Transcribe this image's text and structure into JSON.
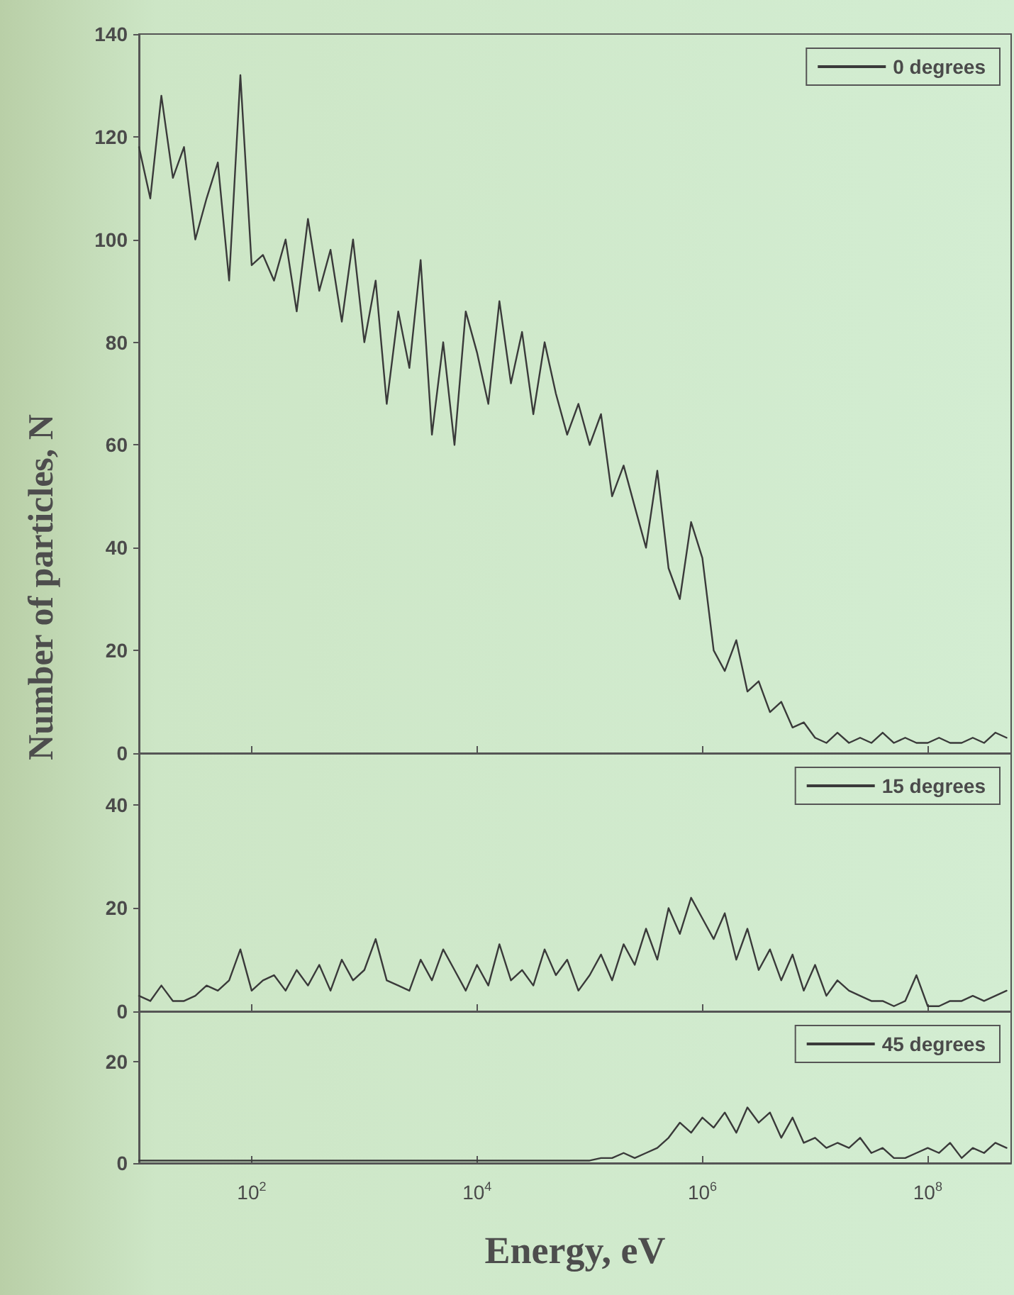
{
  "chart_data": [
    {
      "type": "line",
      "ylabel": "Number of particles, N",
      "log": "x",
      "legend": "top right",
      "tick_labels": "y",
      "x": [
        10,
        12.6,
        15.8,
        20,
        25.1,
        31.6,
        39.8,
        50.1,
        63.1,
        79.4,
        100,
        126,
        158,
        200,
        251,
        316,
        398,
        501,
        631,
        794,
        1000,
        1260,
        1580,
        2000,
        2510,
        3160,
        3980,
        5010,
        6310,
        7940,
        10000.0,
        12600.0,
        15800.0,
        20000.0,
        25100.0,
        31600.0,
        39800.0,
        50100.0,
        63100.0,
        79400.0,
        100000.0,
        126000.0,
        158000.0,
        200000.0,
        251000.0,
        316000.0,
        398000.0,
        501000.0,
        631000.0,
        794000.0,
        1000000.0,
        1260000.0,
        1580000.0,
        2000000.0,
        2510000.0,
        3160000.0,
        3980000.0,
        5010000.0,
        6310000.0,
        7940000.0,
        10000000.0,
        12600000.0,
        15800000.0,
        20000000.0,
        25100000.0,
        31600000.0,
        39800000.0,
        50100000.0,
        63100000.0,
        79400000.0,
        100000000.0,
        126000000.0,
        158000000.0,
        200000000.0,
        251000000.0,
        316000000.0,
        398000000.0,
        501000000.0
      ],
      "xlim": [
        10,
        550000000.0
      ],
      "xticks": [
        {
          "value": 100,
          "label": null
        },
        {
          "value": 10000,
          "label": null
        },
        {
          "value": 1000000,
          "label": null
        },
        {
          "value": 100000000,
          "label": null
        }
      ],
      "ylim": [
        0,
        140
      ],
      "yticks": [
        0,
        20,
        40,
        60,
        80,
        100,
        120,
        140
      ],
      "series": [
        {
          "name": "0 degrees",
          "color": "#3a3a3a",
          "values": [
            118,
            108,
            128,
            112,
            118,
            100,
            108,
            115,
            92,
            132,
            95,
            97,
            92,
            100,
            86,
            104,
            90,
            98,
            84,
            100,
            80,
            92,
            68,
            86,
            75,
            96,
            62,
            80,
            60,
            86,
            78,
            68,
            88,
            72,
            82,
            66,
            80,
            70,
            62,
            68,
            60,
            66,
            50,
            56,
            48,
            40,
            55,
            36,
            30,
            45,
            38,
            20,
            16,
            22,
            12,
            14,
            8,
            10,
            5,
            6,
            3,
            2,
            4,
            2,
            3,
            2,
            4,
            2,
            3,
            2,
            2,
            3,
            2,
            2,
            3,
            2,
            4,
            3
          ]
        }
      ]
    },
    {
      "type": "line",
      "log": "x",
      "legend": "top right",
      "tick_labels": "y",
      "x": [
        10,
        12.6,
        15.8,
        20,
        25.1,
        31.6,
        39.8,
        50.1,
        63.1,
        79.4,
        100,
        126,
        158,
        200,
        251,
        316,
        398,
        501,
        631,
        794,
        1000,
        1260,
        1580,
        2000,
        2510,
        3160,
        3980,
        5010,
        6310,
        7940,
        10000.0,
        12600.0,
        15800.0,
        20000.0,
        25100.0,
        31600.0,
        39800.0,
        50100.0,
        63100.0,
        79400.0,
        100000.0,
        126000.0,
        158000.0,
        200000.0,
        251000.0,
        316000.0,
        398000.0,
        501000.0,
        631000.0,
        794000.0,
        1000000.0,
        1260000.0,
        1580000.0,
        2000000.0,
        2510000.0,
        3160000.0,
        3980000.0,
        5010000.0,
        6310000.0,
        7940000.0,
        10000000.0,
        12600000.0,
        15800000.0,
        20000000.0,
        25100000.0,
        31600000.0,
        39800000.0,
        50100000.0,
        63100000.0,
        79400000.0,
        100000000.0,
        126000000.0,
        158000000.0,
        200000000.0,
        251000000.0,
        316000000.0,
        398000000.0,
        501000000.0
      ],
      "xlim": [
        10,
        550000000.0
      ],
      "xticks": [
        {
          "value": 100,
          "label": null
        },
        {
          "value": 10000,
          "label": null
        },
        {
          "value": 1000000,
          "label": null
        },
        {
          "value": 100000000,
          "label": null
        }
      ],
      "ylim": [
        0,
        50
      ],
      "yticks": [
        0,
        20,
        40
      ],
      "series": [
        {
          "name": "15 degrees",
          "color": "#3a3a3a",
          "values": [
            3,
            2,
            5,
            2,
            2,
            3,
            5,
            4,
            6,
            12,
            4,
            6,
            7,
            4,
            8,
            5,
            9,
            4,
            10,
            6,
            8,
            14,
            6,
            5,
            4,
            10,
            6,
            12,
            8,
            4,
            9,
            5,
            13,
            6,
            8,
            5,
            12,
            7,
            10,
            4,
            7,
            11,
            6,
            13,
            9,
            16,
            10,
            20,
            15,
            22,
            18,
            14,
            19,
            10,
            16,
            8,
            12,
            6,
            11,
            4,
            9,
            3,
            6,
            4,
            3,
            2,
            2,
            1,
            2,
            7,
            1,
            1,
            2,
            2,
            3,
            2,
            3,
            4
          ]
        }
      ]
    },
    {
      "type": "line",
      "xlabel": "Energy, eV",
      "log": "x",
      "legend": "top right",
      "x": [
        10,
        12.6,
        15.8,
        20,
        25.1,
        31.6,
        39.8,
        50.1,
        63.1,
        79.4,
        100,
        126,
        158,
        200,
        251,
        316,
        398,
        501,
        631,
        794,
        1000,
        1260,
        1580,
        2000,
        2510,
        3160,
        3980,
        5010,
        6310,
        7940,
        10000.0,
        12600.0,
        15800.0,
        20000.0,
        25100.0,
        31600.0,
        39800.0,
        50100.0,
        63100.0,
        79400.0,
        100000.0,
        126000.0,
        158000.0,
        200000.0,
        251000.0,
        316000.0,
        398000.0,
        501000.0,
        631000.0,
        794000.0,
        1000000.0,
        1260000.0,
        1580000.0,
        2000000.0,
        2510000.0,
        3160000.0,
        3980000.0,
        5010000.0,
        6310000.0,
        7940000.0,
        10000000.0,
        12600000.0,
        15800000.0,
        20000000.0,
        25100000.0,
        31600000.0,
        39800000.0,
        50100000.0,
        63100000.0,
        79400000.0,
        100000000.0,
        126000000.0,
        158000000.0,
        200000000.0,
        251000000.0,
        316000000.0,
        398000000.0,
        501000000.0
      ],
      "xlim": [
        10,
        550000000.0
      ],
      "xticks": [
        {
          "value": 100,
          "label": "10$^{2}$"
        },
        {
          "value": 10000,
          "label": "10$^{4}$"
        },
        {
          "value": 1000000,
          "label": "10$^{6}$"
        },
        {
          "value": 100000000,
          "label": "10$^{8}$"
        }
      ],
      "ylim": [
        0,
        30
      ],
      "yticks": [
        0,
        20
      ],
      "series": [
        {
          "name": "45 degrees",
          "color": "#3a3a3a",
          "values": [
            0.5,
            0.5,
            0.5,
            0.5,
            0.5,
            0.5,
            0.5,
            0.5,
            0.5,
            0.5,
            0.5,
            0.5,
            0.5,
            0.5,
            0.5,
            0.5,
            0.5,
            0.5,
            0.5,
            0.5,
            0.5,
            0.5,
            0.5,
            0.5,
            0.5,
            0.5,
            0.5,
            0.5,
            0.5,
            0.5,
            0.5,
            0.5,
            0.5,
            0.5,
            0.5,
            0.5,
            0.5,
            0.5,
            0.5,
            0.5,
            0.5,
            1,
            1,
            2,
            1,
            2,
            3,
            5,
            8,
            6,
            9,
            7,
            10,
            6,
            11,
            8,
            10,
            5,
            9,
            4,
            5,
            3,
            4,
            3,
            5,
            2,
            3,
            1,
            1,
            2,
            3,
            2,
            4,
            1,
            3,
            2,
            4,
            3
          ]
        }
      ]
    }
  ]
}
